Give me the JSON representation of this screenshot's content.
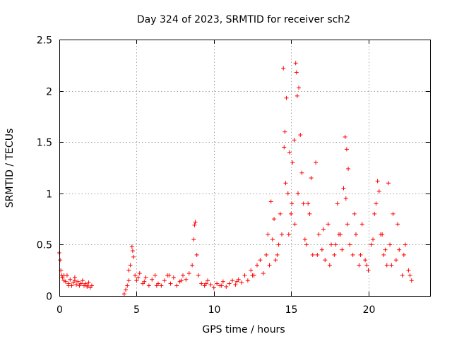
{
  "chart_data": {
    "type": "scatter",
    "title": "Day 324 of 2023, SRMTID for receiver sch2",
    "xlabel": "GPS time / hours",
    "ylabel": "SRMTID / TECUs",
    "xlim": [
      0,
      24
    ],
    "ylim": [
      0,
      2.5
    ],
    "xticks": [
      0,
      5,
      10,
      15,
      20
    ],
    "xtick_labels": [
      "0",
      "5",
      "10",
      "15",
      "20"
    ],
    "yticks": [
      0,
      0.5,
      1,
      1.5,
      2,
      2.5
    ],
    "ytick_labels": [
      "0",
      "0.5",
      "1",
      "1.5",
      "2",
      "2.5"
    ],
    "grid": true,
    "marker": "plus",
    "color": "#ff0000",
    "series": [
      {
        "name": "SRMTID",
        "x": [
          0.0,
          0.05,
          0.1,
          0.15,
          0.2,
          0.3,
          0.4,
          0.5,
          0.6,
          0.7,
          0.8,
          0.9,
          1.0,
          1.1,
          1.2,
          1.3,
          1.4,
          1.5,
          1.6,
          1.7,
          1.8,
          1.9,
          2.0,
          2.1,
          4.2,
          4.3,
          4.4,
          4.5,
          4.6,
          4.7,
          4.75,
          4.8,
          4.9,
          5.0,
          5.2,
          5.4,
          5.6,
          5.8,
          6.0,
          6.2,
          6.4,
          6.6,
          6.8,
          7.0,
          7.2,
          7.4,
          7.6,
          7.8,
          8.0,
          8.2,
          8.4,
          8.6,
          8.7,
          8.8,
          8.9,
          9.0,
          9.2,
          9.4,
          9.6,
          9.8,
          10.0,
          10.2,
          10.4,
          10.6,
          10.8,
          11.0,
          11.2,
          11.4,
          11.6,
          11.8,
          12.0,
          12.2,
          12.4,
          12.6,
          12.8,
          13.0,
          13.2,
          13.4,
          13.6,
          13.7,
          13.8,
          14.0,
          14.2,
          14.4,
          14.5,
          14.6,
          14.7,
          14.8,
          14.9,
          15.0,
          15.1,
          15.2,
          15.3,
          15.35,
          15.4,
          15.5,
          15.6,
          15.7,
          15.8,
          16.0,
          16.2,
          16.4,
          16.6,
          16.8,
          17.0,
          17.2,
          17.4,
          17.6,
          17.8,
          18.0,
          18.2,
          18.4,
          18.5,
          18.6,
          18.7,
          18.8,
          19.0,
          19.2,
          19.4,
          19.6,
          19.8,
          20.0,
          20.2,
          20.4,
          20.6,
          20.7,
          20.8,
          21.0,
          21.2,
          21.3,
          21.4,
          21.6,
          21.8,
          22.0,
          22.2,
          22.4,
          22.6,
          22.8,
          0.3,
          0.6,
          1.0,
          1.4,
          1.8,
          4.5,
          5.1,
          5.5,
          6.3,
          7.1,
          7.9,
          8.75,
          9.5,
          10.5,
          11.5,
          12.5,
          13.5,
          13.9,
          14.1,
          14.3,
          14.55,
          14.65,
          14.85,
          15.05,
          15.25,
          15.45,
          15.9,
          16.1,
          16.3,
          16.7,
          17.1,
          17.5,
          17.9,
          18.1,
          18.3,
          18.55,
          18.65,
          19.1,
          19.5,
          19.9,
          20.3,
          20.5,
          20.9,
          21.1,
          21.5,
          21.9,
          22.3,
          22.7
        ],
        "y": [
          0.42,
          0.35,
          0.25,
          0.2,
          0.18,
          0.15,
          0.14,
          0.2,
          0.12,
          0.16,
          0.1,
          0.13,
          0.18,
          0.11,
          0.14,
          0.1,
          0.12,
          0.15,
          0.1,
          0.12,
          0.09,
          0.13,
          0.08,
          0.1,
          0.02,
          0.06,
          0.1,
          0.15,
          0.3,
          0.48,
          0.44,
          0.38,
          0.2,
          0.15,
          0.22,
          0.12,
          0.18,
          0.1,
          0.16,
          0.2,
          0.12,
          0.1,
          0.15,
          0.2,
          0.12,
          0.18,
          0.1,
          0.14,
          0.2,
          0.16,
          0.22,
          0.3,
          0.55,
          0.72,
          0.4,
          0.2,
          0.12,
          0.1,
          0.15,
          0.11,
          0.08,
          0.12,
          0.1,
          0.14,
          0.09,
          0.12,
          0.15,
          0.11,
          0.16,
          0.13,
          0.2,
          0.15,
          0.25,
          0.2,
          0.3,
          0.35,
          0.22,
          0.4,
          0.3,
          0.92,
          0.55,
          0.35,
          0.5,
          0.6,
          2.22,
          1.6,
          1.93,
          1.0,
          1.4,
          0.8,
          1.3,
          1.52,
          2.27,
          2.18,
          1.95,
          2.03,
          1.57,
          1.2,
          0.9,
          0.5,
          0.8,
          0.4,
          1.3,
          0.6,
          0.45,
          0.35,
          0.7,
          0.5,
          0.4,
          0.9,
          0.6,
          1.05,
          1.55,
          1.43,
          1.24,
          0.5,
          0.4,
          0.6,
          0.3,
          0.7,
          0.35,
          0.25,
          0.5,
          0.8,
          1.12,
          1.02,
          0.6,
          0.4,
          0.3,
          1.1,
          0.5,
          0.8,
          0.35,
          0.45,
          0.2,
          0.5,
          0.25,
          0.15,
          0.2,
          0.1,
          0.15,
          0.12,
          0.1,
          0.25,
          0.18,
          0.14,
          0.1,
          0.2,
          0.15,
          0.69,
          0.12,
          0.1,
          0.14,
          0.2,
          0.6,
          0.75,
          0.4,
          0.8,
          1.45,
          1.1,
          0.6,
          0.9,
          0.7,
          1.0,
          0.55,
          0.9,
          1.15,
          0.4,
          0.65,
          0.3,
          0.5,
          0.6,
          0.45,
          0.95,
          0.7,
          0.8,
          0.4,
          0.3,
          0.55,
          0.9,
          0.6,
          0.45,
          0.3,
          0.7,
          0.4,
          0.2
        ]
      }
    ]
  }
}
